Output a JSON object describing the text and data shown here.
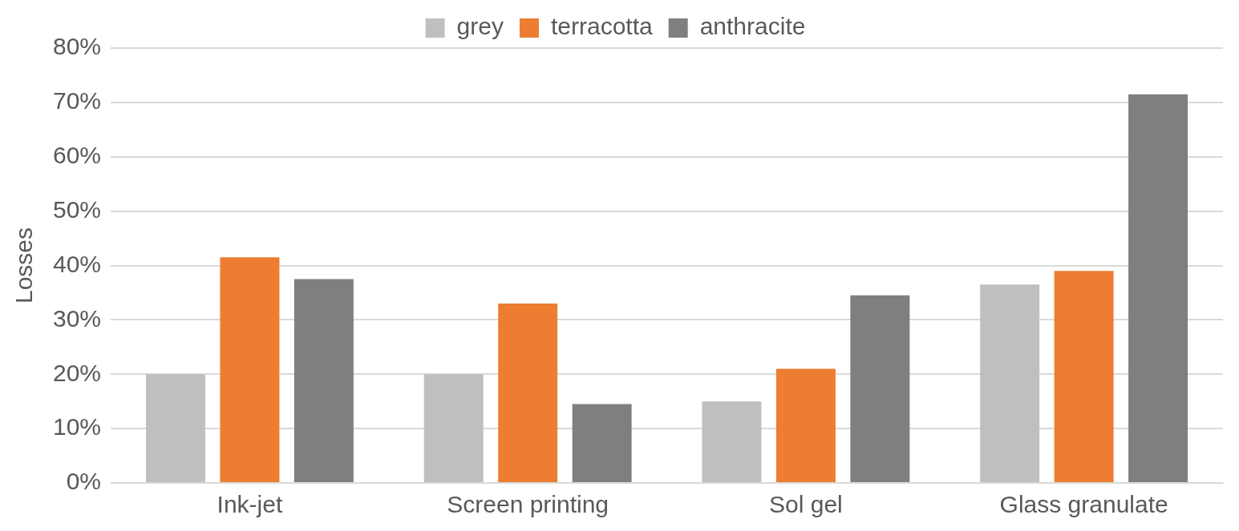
{
  "chart_data": {
    "type": "bar",
    "ylabel": "Losses",
    "categories": [
      "Ink-jet",
      "Screen printing",
      "Sol gel",
      "Glass granulate"
    ],
    "series": [
      {
        "name": "grey",
        "color": "#bfbfbf",
        "values": [
          20,
          20,
          15,
          36.5
        ]
      },
      {
        "name": "terracotta",
        "color": "#ed7d31",
        "values": [
          41.5,
          33,
          21,
          39
        ]
      },
      {
        "name": "anthracite",
        "color": "#7f7f7f",
        "values": [
          37.5,
          14.5,
          34.5,
          71.5
        ]
      }
    ],
    "ylim": [
      0,
      80
    ],
    "yticks": [
      {
        "value": 0,
        "label": "0%"
      },
      {
        "value": 10,
        "label": "10%"
      },
      {
        "value": 20,
        "label": "20%"
      },
      {
        "value": 30,
        "label": "30%"
      },
      {
        "value": 40,
        "label": "40%"
      },
      {
        "value": 50,
        "label": "50%"
      },
      {
        "value": 60,
        "label": "60%"
      },
      {
        "value": 70,
        "label": "70%"
      },
      {
        "value": 80,
        "label": "80%"
      }
    ],
    "grid": "y",
    "legend": "top"
  }
}
